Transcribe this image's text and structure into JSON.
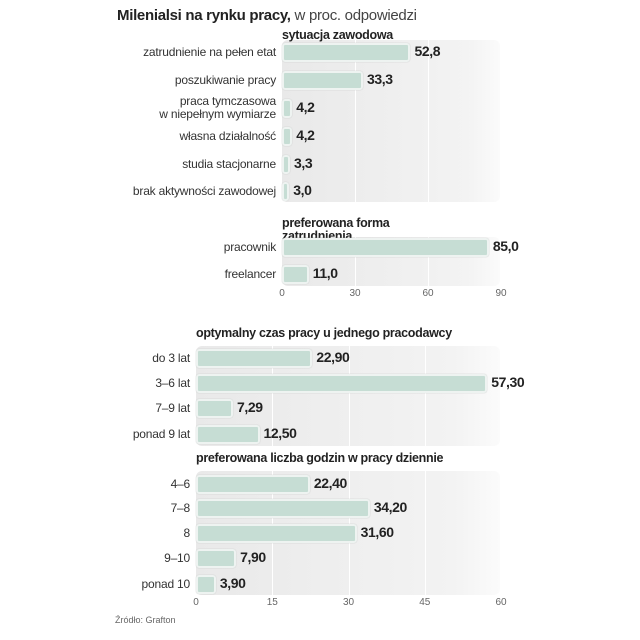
{
  "title": {
    "bold": "Milenialsi na rynku pracy,",
    "sub": " w proc. odpowiedzi"
  },
  "source": "Źródło: Grafton",
  "colors": {
    "bar": "#c6ddd4",
    "panel": "#e9e9e9"
  },
  "chart_data": [
    {
      "type": "bar",
      "orientation": "horizontal",
      "xlim": [
        0,
        90
      ],
      "ticks": [
        "0",
        "30",
        "60",
        "90"
      ],
      "groups": [
        {
          "title": "sytuacja zawodowa",
          "categories": [
            "zatrudnienie na pełen etat",
            "poszukiwanie pracy",
            "praca tymczasowa\nw niepełnym wymiarze",
            "własna działalność",
            "studia stacjonarne",
            "brak aktywności zawodowej"
          ],
          "values": [
            52.8,
            33.3,
            4.2,
            4.2,
            3.3,
            3.0
          ],
          "labels": [
            "52,8",
            "33,3",
            "4,2",
            "4,2",
            "3,3",
            "3,0"
          ]
        },
        {
          "title": "preferowana forma\nzatrudnienia",
          "categories": [
            "pracownik",
            "freelancer"
          ],
          "values": [
            85.0,
            11.0
          ],
          "labels": [
            "85,0",
            "11,0"
          ]
        }
      ]
    },
    {
      "type": "bar",
      "orientation": "horizontal",
      "xlim": [
        0,
        60
      ],
      "ticks": [
        "0",
        "15",
        "30",
        "45",
        "60"
      ],
      "groups": [
        {
          "title": "optymalny czas pracy u jednego pracodawcy",
          "categories": [
            "do 3 lat",
            "3–6 lat",
            "7–9 lat",
            "ponad 9 lat"
          ],
          "values": [
            22.9,
            57.3,
            7.29,
            12.5
          ],
          "labels": [
            "22,90",
            "57,30",
            "7,29",
            "12,50"
          ]
        },
        {
          "title": "preferowana liczba godzin w pracy dziennie",
          "categories": [
            "4–6",
            "7–8",
            "8",
            "9–10",
            "ponad 10"
          ],
          "values": [
            22.4,
            34.2,
            31.6,
            7.9,
            3.9
          ],
          "labels": [
            "22,40",
            "34,20",
            "31,60",
            "7,90",
            "3,90"
          ]
        }
      ]
    }
  ]
}
